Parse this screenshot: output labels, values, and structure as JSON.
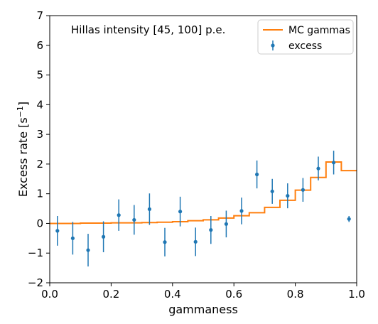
{
  "chart_data": {
    "type": "line",
    "annotation": "Hillas intensity [45, 100] p.e.",
    "xlabel": "gammaness",
    "ylabel": "Excess rate [s",
    "ylabel_sup": "−1",
    "ylabel_end": "]",
    "xlim": [
      0.0,
      1.0
    ],
    "ylim": [
      -2,
      7
    ],
    "xticks": [
      0.0,
      0.2,
      0.4,
      0.6,
      0.8,
      1.0
    ],
    "xtick_labels": [
      "0.0",
      "0.2",
      "0.4",
      "0.6",
      "0.8",
      "1.0"
    ],
    "yticks": [
      -2,
      -1,
      0,
      1,
      2,
      3,
      4,
      5,
      6,
      7
    ],
    "ytick_labels": [
      "−2",
      "−1",
      "0",
      "1",
      "2",
      "3",
      "4",
      "5",
      "6",
      "7"
    ],
    "legend_position": "top-right",
    "colors": {
      "mc": "#ff7f0e",
      "excess": "#1f77b4"
    },
    "series": [
      {
        "name": "MC gammas",
        "kind": "step",
        "bin_edges": [
          0.0,
          0.05,
          0.1,
          0.15,
          0.2,
          0.25,
          0.3,
          0.35,
          0.4,
          0.45,
          0.5,
          0.55,
          0.6,
          0.65,
          0.7,
          0.75,
          0.8,
          0.85,
          0.9,
          0.95,
          1.0
        ],
        "values": [
          0.0,
          0.0,
          0.01,
          0.01,
          0.02,
          0.02,
          0.03,
          0.04,
          0.06,
          0.09,
          0.12,
          0.18,
          0.26,
          0.36,
          0.54,
          0.78,
          1.12,
          1.55,
          2.07,
          1.78
        ]
      },
      {
        "name": "excess",
        "kind": "errorbar",
        "x": [
          0.025,
          0.075,
          0.125,
          0.175,
          0.225,
          0.275,
          0.325,
          0.375,
          0.425,
          0.475,
          0.525,
          0.575,
          0.625,
          0.675,
          0.725,
          0.775,
          0.825,
          0.875,
          0.925,
          0.975
        ],
        "y": [
          -0.25,
          -0.5,
          -0.9,
          -0.45,
          0.28,
          0.12,
          0.48,
          -0.63,
          0.4,
          -0.62,
          -0.22,
          -0.02,
          0.42,
          1.65,
          1.08,
          0.93,
          1.13,
          1.85,
          2.05,
          0.15
        ],
        "yerr": [
          0.5,
          0.55,
          0.55,
          0.52,
          0.53,
          0.5,
          0.53,
          0.48,
          0.5,
          0.48,
          0.47,
          0.45,
          0.45,
          0.47,
          0.42,
          0.42,
          0.4,
          0.4,
          0.4,
          0.1
        ]
      }
    ]
  }
}
